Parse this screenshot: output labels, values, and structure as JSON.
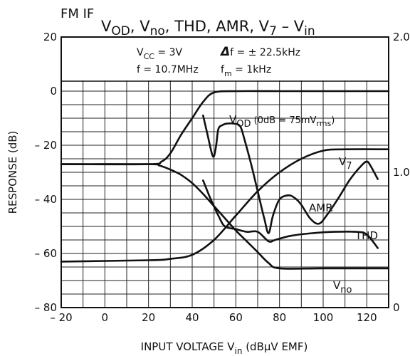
{
  "header": {
    "prefix": "FM IF",
    "title_parts": [
      {
        "t": "V",
        "sub": "OD"
      },
      {
        "t": ", V",
        "sub": "no"
      },
      {
        "t": ", THD, AMR, V",
        "sub": "7"
      },
      {
        "t": "  –  V",
        "sub": "in"
      }
    ]
  },
  "conditions": {
    "vcc": {
      "main": "V",
      "sub": "CC",
      "rest": " = 3V"
    },
    "df": {
      "sym": "Δ",
      "rest": "f = ± 22.5kHz"
    },
    "f": {
      "rest": "f = 10.7MHz"
    },
    "fm": {
      "main": "f",
      "sub": "m",
      "rest": " = 1kHz"
    }
  },
  "chart_data": {
    "type": "line",
    "title": "",
    "xlabel": {
      "main": "INPUT VOLTAGE   V",
      "sub": "in",
      "rest": "   (dBμV EMF)"
    },
    "ylabel": "RESPONSE   (dB)",
    "xlim": [
      -20,
      130
    ],
    "ylim": [
      -80,
      20
    ],
    "y2lim": [
      0,
      2.0
    ],
    "xticks": [
      -20,
      0,
      20,
      40,
      60,
      80,
      100,
      120
    ],
    "xtick_labels": [
      "– 20",
      "0",
      "20",
      "40",
      "60",
      "80",
      "100",
      "120"
    ],
    "yticks": [
      20,
      0,
      -20,
      -40,
      -60,
      -80
    ],
    "ytick_labels": [
      "20",
      "0",
      "– 20",
      "– 40",
      "– 60",
      "– 80"
    ],
    "y2ticks": [
      2.0,
      1.0,
      0
    ],
    "y2tick_labels": [
      "2.0",
      "1.0",
      "0"
    ],
    "grid": true,
    "series": [
      {
        "name": "VOD",
        "x": [
          -20,
          20,
          26,
          30,
          35,
          40,
          45,
          50,
          60,
          80,
          100,
          130
        ],
        "y": [
          -27,
          -27,
          -26,
          -23,
          -16,
          -10,
          -4,
          -0.5,
          0,
          0,
          0,
          0
        ]
      },
      {
        "name": "V7",
        "x": [
          -20,
          20,
          30,
          40,
          50,
          60,
          70,
          80,
          90,
          100,
          110,
          130
        ],
        "y": [
          -63,
          -62.5,
          -62,
          -60.5,
          -55,
          -46,
          -37,
          -30,
          -25,
          -22,
          -21.5,
          -21.5
        ]
      },
      {
        "name": "Vno",
        "x": [
          -20,
          20,
          25,
          30,
          35,
          40,
          45,
          50,
          55,
          60,
          65,
          70,
          75,
          80,
          100,
          130
        ],
        "y": [
          -27,
          -27,
          -27.5,
          -29,
          -31,
          -34,
          -38,
          -42.5,
          -47,
          -51.5,
          -55.5,
          -59.5,
          -63.5,
          -65.5,
          -65.5,
          -65.5
        ]
      },
      {
        "name": "THD",
        "x": [
          45,
          48,
          52,
          55,
          60,
          65,
          70,
          75,
          78,
          85,
          95,
          105,
          115,
          120,
          125
        ],
        "y": [
          -33,
          -39,
          -46,
          -50,
          -51,
          -52,
          -52,
          -55.5,
          -55,
          -53.5,
          -52.5,
          -52,
          -52,
          -53,
          -58
        ]
      },
      {
        "name": "AMR",
        "x": [
          45,
          47,
          49,
          50,
          51,
          52,
          54,
          56,
          59,
          62,
          64,
          67,
          70,
          73,
          75,
          77,
          80,
          84,
          87,
          90,
          94,
          98,
          102,
          107,
          112,
          117,
          120,
          122,
          125
        ],
        "y": [
          -9,
          -16,
          -23,
          -24,
          -20,
          -14,
          -12.5,
          -12,
          -12,
          -13,
          -18,
          -27,
          -37,
          -47,
          -52.5,
          -46,
          -40,
          -38.5,
          -39.5,
          -42,
          -47,
          -49,
          -45.5,
          -39.5,
          -33,
          -28,
          -26,
          -28,
          -32.5
        ]
      }
    ],
    "annotations": [
      {
        "target": "VOD",
        "main": "V",
        "sub": "OD",
        "rest": "  (0dB = 75mV",
        "sub2": "rms",
        "close": ")"
      },
      {
        "target": "V7",
        "main": "V",
        "sub": "7"
      },
      {
        "target": "AMR",
        "main": "AMR"
      },
      {
        "target": "THD",
        "main": "THD"
      },
      {
        "target": "Vno",
        "main": "V",
        "sub": "no"
      }
    ]
  }
}
